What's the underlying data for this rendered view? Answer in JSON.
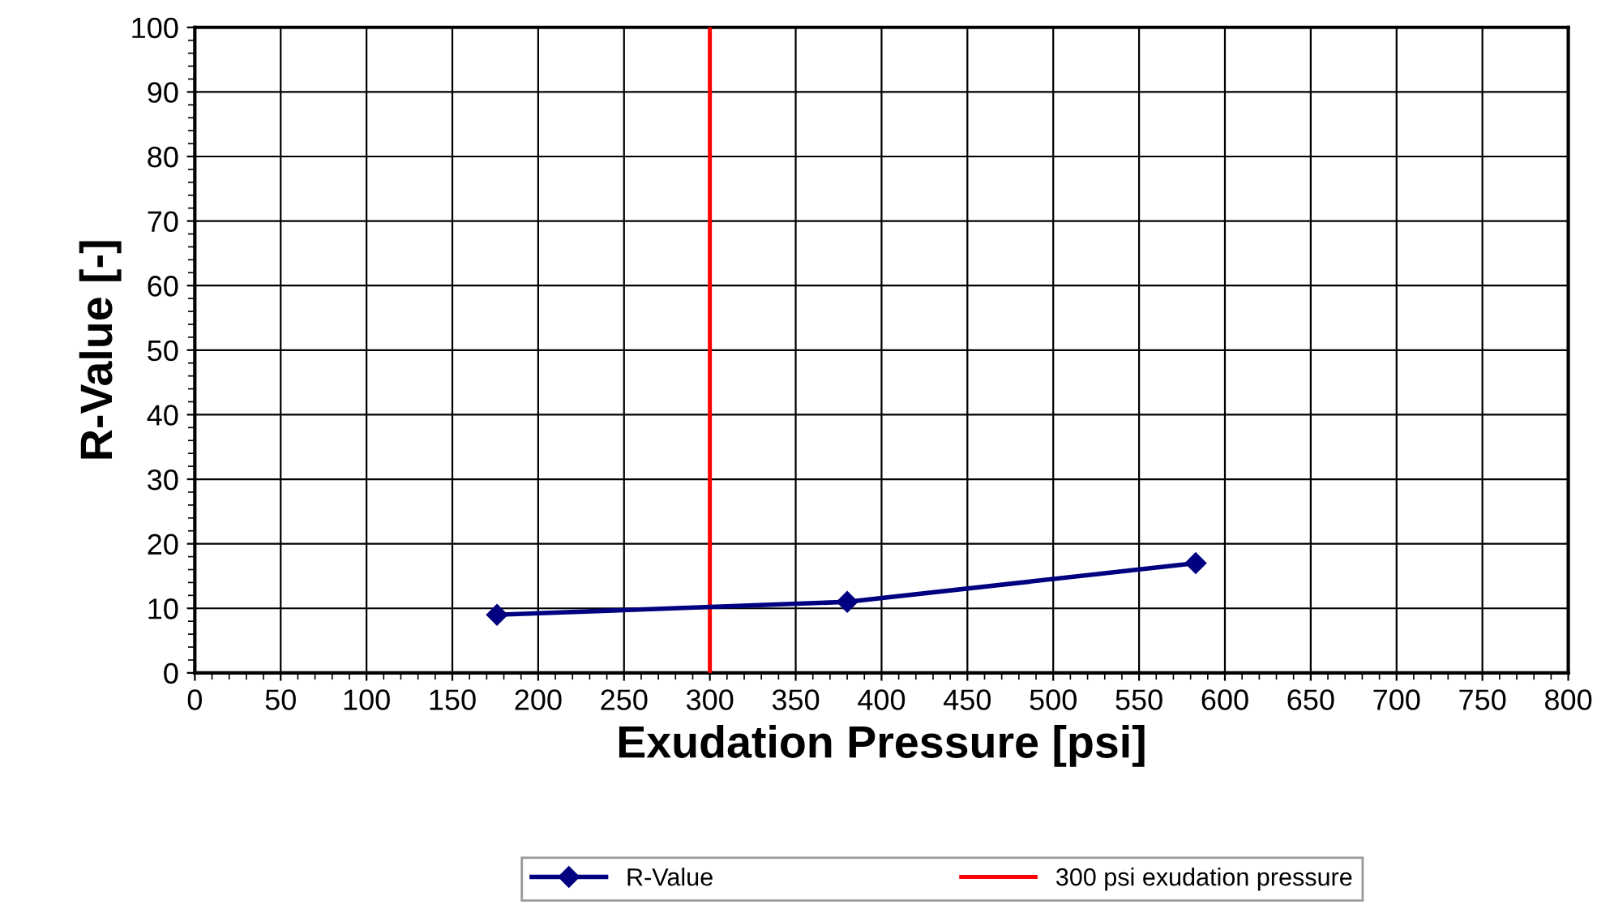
{
  "chart_data": {
    "type": "line",
    "xlabel": "Exudation Pressure [psi]",
    "ylabel": "R-Value [-]",
    "series": [
      {
        "name": "R-Value",
        "color": "#000080",
        "x": [
          176,
          380,
          583
        ],
        "values": [
          9,
          11,
          17
        ]
      }
    ],
    "ref_lines": [
      {
        "axis": "x",
        "value": 300,
        "label": "300 psi exudation pressure",
        "color": "#ff0000"
      }
    ],
    "xlim": [
      0,
      800
    ],
    "xticks": [
      0,
      50,
      100,
      150,
      200,
      250,
      300,
      350,
      400,
      450,
      500,
      550,
      600,
      650,
      700,
      750,
      800
    ],
    "ylim": [
      0,
      100
    ],
    "yticks": [
      0,
      10,
      20,
      30,
      40,
      50,
      60,
      70,
      80,
      90,
      100
    ],
    "grid": true,
    "legend": "bottom",
    "marker": "diamond",
    "line_style": "solid"
  }
}
